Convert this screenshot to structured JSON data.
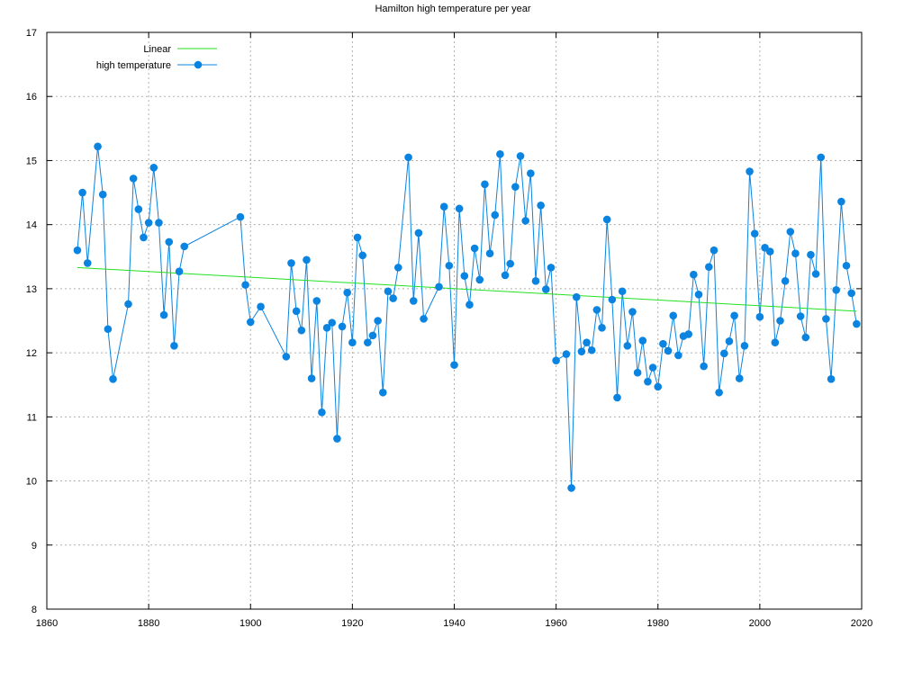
{
  "chart_data": {
    "type": "line",
    "title": "Hamilton high temperature per year",
    "xlim": [
      1860,
      2020
    ],
    "ylim": [
      8,
      17
    ],
    "xticks": [
      "1860",
      "1880",
      "1900",
      "1920",
      "1940",
      "1960",
      "1980",
      "2000",
      "2020"
    ],
    "yticks": [
      "8",
      "9",
      "10",
      "11",
      "12",
      "13",
      "14",
      "15",
      "16",
      "17"
    ],
    "grid": true,
    "legend_position": "top-left",
    "series": [
      {
        "name": "high temperature",
        "color": "#0a84e0",
        "marker": "circle",
        "x": [
          1866,
          1867,
          1868,
          1870,
          1871,
          1872,
          1873,
          1876,
          1877,
          1878,
          1879,
          1880,
          1881,
          1882,
          1883,
          1884,
          1885,
          1886,
          1887,
          1898,
          1899,
          1900,
          1902,
          1907,
          1908,
          1909,
          1910,
          1911,
          1912,
          1913,
          1914,
          1915,
          1916,
          1917,
          1918,
          1919,
          1920,
          1921,
          1922,
          1923,
          1924,
          1925,
          1926,
          1927,
          1928,
          1929,
          1931,
          1932,
          1933,
          1934,
          1937,
          1938,
          1939,
          1940,
          1941,
          1942,
          1943,
          1944,
          1945,
          1946,
          1947,
          1948,
          1949,
          1950,
          1951,
          1952,
          1953,
          1954,
          1955,
          1956,
          1957,
          1958,
          1959,
          1960,
          1962,
          1963,
          1964,
          1965,
          1966,
          1967,
          1968,
          1969,
          1970,
          1971,
          1972,
          1973,
          1974,
          1975,
          1976,
          1977,
          1978,
          1979,
          1980,
          1981,
          1982,
          1983,
          1984,
          1985,
          1986,
          1987,
          1988,
          1989,
          1990,
          1991,
          1992,
          1993,
          1994,
          1995,
          1996,
          1997,
          1998,
          1999,
          2000,
          2001,
          2002,
          2003,
          2004,
          2005,
          2006,
          2007,
          2008,
          2009,
          2010,
          2011,
          2012,
          2013,
          2014,
          2015,
          2016,
          2017,
          2018,
          2019
        ],
        "y": [
          13.6,
          14.5,
          13.4,
          15.22,
          14.47,
          12.37,
          11.59,
          12.76,
          14.72,
          14.24,
          13.8,
          14.03,
          14.89,
          14.03,
          12.59,
          13.73,
          12.11,
          13.27,
          13.66,
          14.12,
          13.06,
          12.48,
          12.72,
          11.94,
          13.4,
          12.65,
          12.35,
          13.45,
          11.6,
          12.81,
          11.07,
          12.39,
          12.47,
          10.66,
          12.41,
          12.94,
          12.16,
          13.8,
          13.52,
          12.16,
          12.27,
          12.5,
          11.38,
          12.96,
          12.85,
          13.33,
          15.05,
          12.81,
          13.87,
          12.53,
          13.03,
          14.28,
          13.36,
          11.81,
          14.25,
          13.2,
          12.75,
          13.63,
          13.14,
          14.63,
          13.55,
          14.15,
          15.1,
          13.21,
          13.39,
          14.59,
          15.07,
          14.06,
          14.8,
          13.12,
          14.3,
          12.99,
          13.33,
          11.88,
          11.98,
          9.89,
          12.87,
          12.02,
          12.16,
          12.04,
          12.67,
          12.39,
          14.08,
          12.83,
          11.3,
          12.96,
          12.11,
          12.64,
          11.69,
          12.19,
          11.55,
          11.77,
          11.47,
          12.14,
          12.03,
          12.58,
          11.96,
          12.26,
          12.29,
          13.22,
          12.91,
          11.79,
          13.34,
          13.6,
          11.38,
          11.99,
          12.18,
          12.58,
          11.6,
          12.11,
          14.83,
          13.86,
          12.56,
          13.64,
          13.58,
          12.16,
          12.5,
          13.12,
          13.89,
          13.55,
          12.57,
          12.24,
          13.53,
          13.23,
          15.05,
          12.53,
          11.59,
          12.98,
          14.36,
          13.36,
          12.93,
          12.45
        ]
      },
      {
        "name": "Linear",
        "color": "#22e022",
        "x": [
          1866,
          2019
        ],
        "y": [
          13.33,
          12.65
        ]
      }
    ]
  }
}
